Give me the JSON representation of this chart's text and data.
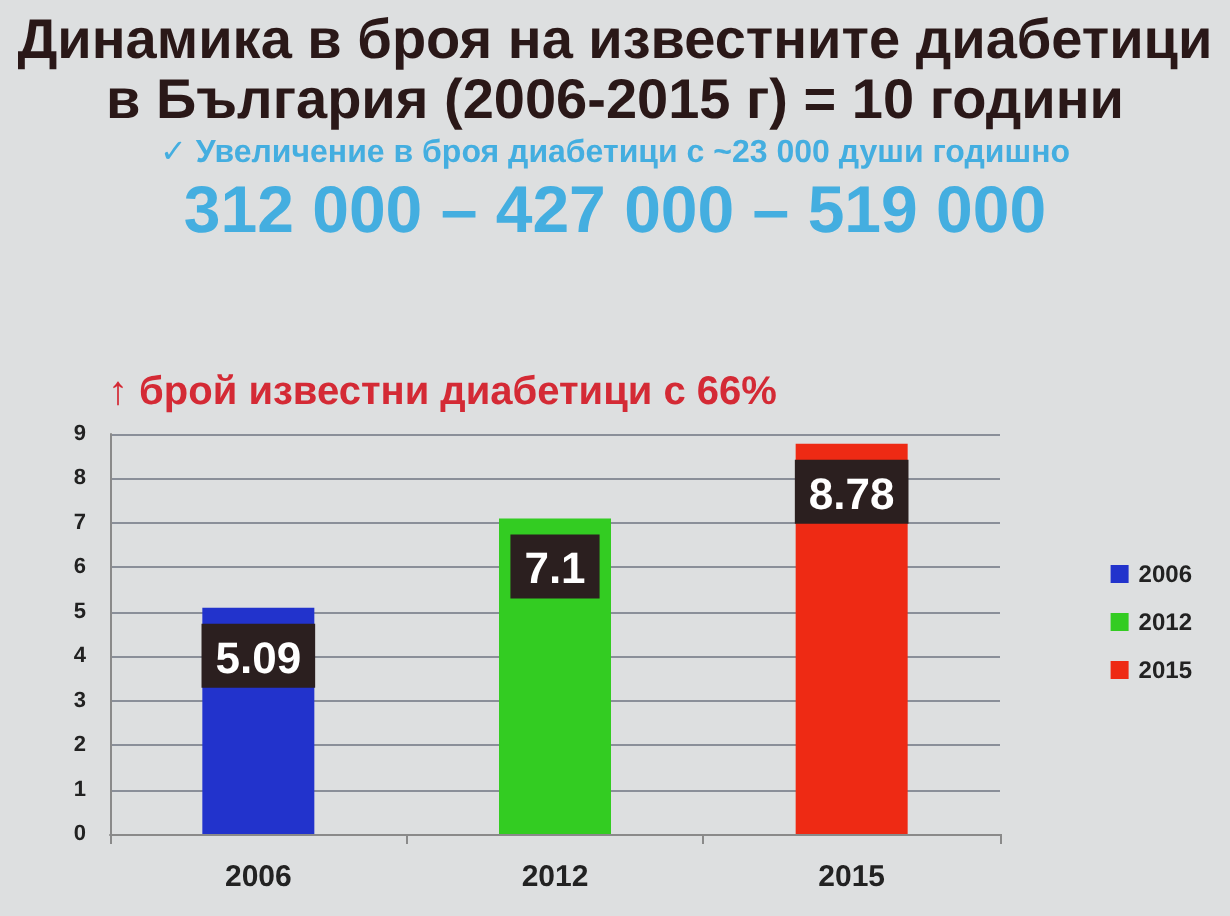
{
  "chart_data": {
    "type": "bar",
    "title": "Динамика в броя на известните диабетици в България (2006-2015 г) = 10 години",
    "subtitle": "✓ Увеличение в броя диабетици с ~23 000 души годишно",
    "annotations": [
      "312 000 – 427 000 – 519 000",
      "↑ брой известни диабетици с 66%"
    ],
    "categories": [
      "2006",
      "2012",
      "2015"
    ],
    "series": [
      {
        "name": "2006",
        "color": "#2233cc",
        "values": [
          5.09,
          null,
          null
        ]
      },
      {
        "name": "2012",
        "color": "#33cc22",
        "values": [
          null,
          7.1,
          null
        ]
      },
      {
        "name": "2015",
        "color": "#ee2a14",
        "values": [
          null,
          null,
          8.78
        ]
      }
    ],
    "ylim": [
      0,
      9
    ],
    "yticks": [
      0,
      1,
      2,
      3,
      4,
      5,
      6,
      7,
      8,
      9
    ],
    "grid": "y",
    "legend": "right",
    "data_labels": true
  }
}
